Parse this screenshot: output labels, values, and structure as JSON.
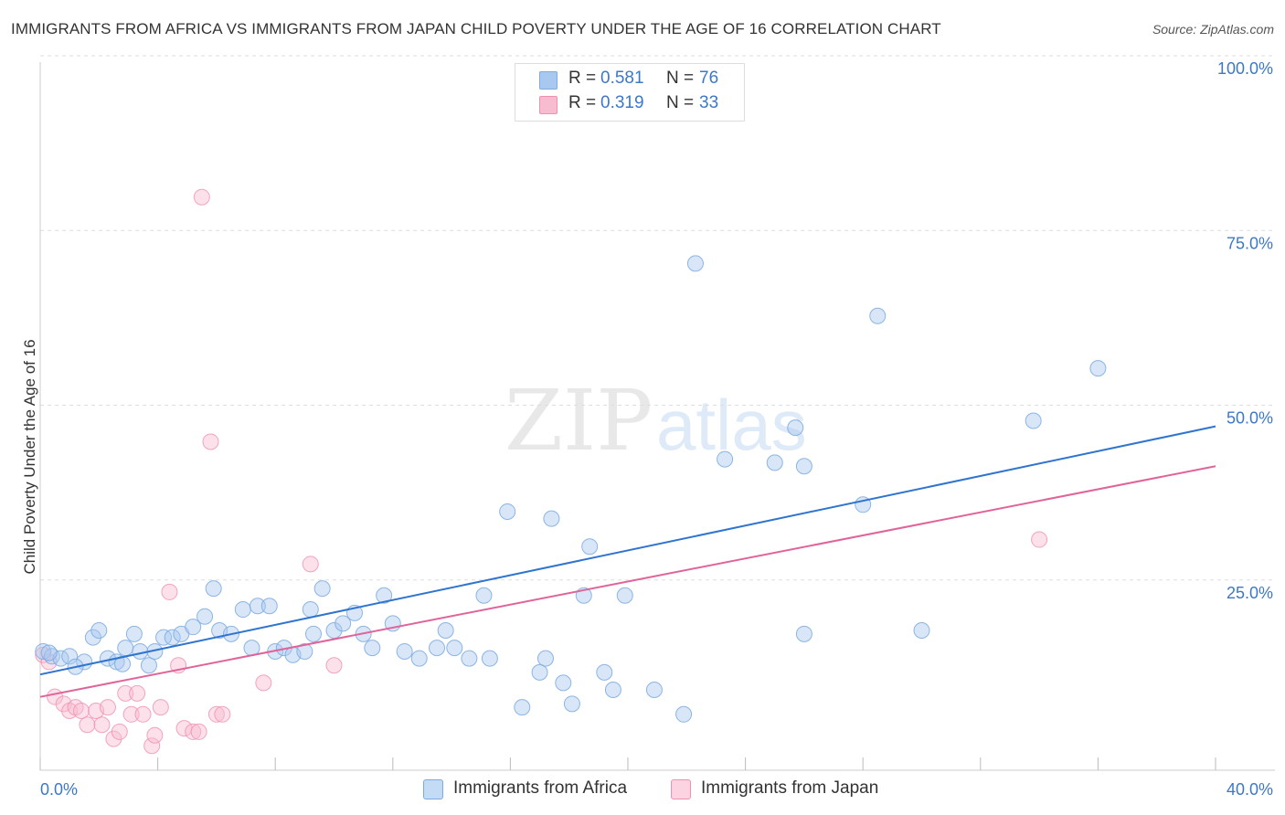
{
  "title": "IMMIGRANTS FROM AFRICA VS IMMIGRANTS FROM JAPAN CHILD POVERTY UNDER THE AGE OF 16 CORRELATION CHART",
  "source": "Source: ZipAtlas.com",
  "watermark": {
    "zip": "ZIP",
    "atlas": "atlas"
  },
  "legend_top": [
    {
      "r_label": "R =",
      "r_value": "0.581",
      "n_label": "N =",
      "n_value": "76"
    },
    {
      "r_label": "R =",
      "r_value": "0.319",
      "n_label": "N =",
      "n_value": "33"
    }
  ],
  "legend_bottom": [
    {
      "label": "Immigrants from Africa"
    },
    {
      "label": "Immigrants from Japan"
    }
  ],
  "colors": {
    "africa_fill": "#a8c8f0",
    "africa_stroke": "#7aaae0",
    "africa_line": "#2f74cf",
    "japan_fill": "#f8bcd0",
    "japan_stroke": "#f090b0",
    "japan_line": "#e0649a",
    "tick_label": "#3c78c8",
    "grid": "#dddddd"
  },
  "chart_data": {
    "type": "scatter",
    "title": "IMMIGRANTS FROM AFRICA VS IMMIGRANTS FROM JAPAN CHILD POVERTY UNDER THE AGE OF 16 CORRELATION CHART",
    "xlabel": "",
    "ylabel": "Child Poverty Under the Age of 16",
    "xlim": [
      0,
      40
    ],
    "ylim": [
      0,
      100
    ],
    "x_tick_labels": [
      {
        "value": 0,
        "label": "0.0%"
      },
      {
        "value": 40,
        "label": "40.0%"
      }
    ],
    "y_tick_labels": [
      {
        "value": 25,
        "label": "25.0%"
      },
      {
        "value": 50,
        "label": "50.0%"
      },
      {
        "value": 75,
        "label": "75.0%"
      },
      {
        "value": 100,
        "label": "100.0%"
      }
    ],
    "series": [
      {
        "name": "Immigrants from Africa",
        "r": 0.581,
        "n": 76,
        "trend": {
          "x": [
            0,
            40
          ],
          "y": [
            13.7,
            49.2
          ]
        },
        "points": [
          [
            0.1,
            17.0
          ],
          [
            0.4,
            16.3
          ],
          [
            0.7,
            16.0
          ],
          [
            1.0,
            16.3
          ],
          [
            1.5,
            15.5
          ],
          [
            1.8,
            19.0
          ],
          [
            2.0,
            20.0
          ],
          [
            2.3,
            16.0
          ],
          [
            2.6,
            15.5
          ],
          [
            2.9,
            17.5
          ],
          [
            3.2,
            19.5
          ],
          [
            3.4,
            17.0
          ],
          [
            3.7,
            15.0
          ],
          [
            3.9,
            17.0
          ],
          [
            4.2,
            19.0
          ],
          [
            4.5,
            19.0
          ],
          [
            4.8,
            19.5
          ],
          [
            5.2,
            20.5
          ],
          [
            5.6,
            22.0
          ],
          [
            5.9,
            26.0
          ],
          [
            6.1,
            20.0
          ],
          [
            6.5,
            19.5
          ],
          [
            6.9,
            23.0
          ],
          [
            7.2,
            17.5
          ],
          [
            7.4,
            23.5
          ],
          [
            7.8,
            23.5
          ],
          [
            8.0,
            17.0
          ],
          [
            8.3,
            17.5
          ],
          [
            8.6,
            16.5
          ],
          [
            9.0,
            17.0
          ],
          [
            9.2,
            23.0
          ],
          [
            9.3,
            19.5
          ],
          [
            9.6,
            26.0
          ],
          [
            10.0,
            20.0
          ],
          [
            10.3,
            21.0
          ],
          [
            10.7,
            22.5
          ],
          [
            11.0,
            19.5
          ],
          [
            11.3,
            17.5
          ],
          [
            11.7,
            25.0
          ],
          [
            12.0,
            21.0
          ],
          [
            12.4,
            17.0
          ],
          [
            12.9,
            16.0
          ],
          [
            13.5,
            17.5
          ],
          [
            13.8,
            20.0
          ],
          [
            14.1,
            17.5
          ],
          [
            14.6,
            16.0
          ],
          [
            15.1,
            25.0
          ],
          [
            15.3,
            16.0
          ],
          [
            15.9,
            37.0
          ],
          [
            16.4,
            9.0
          ],
          [
            17.0,
            14.0
          ],
          [
            17.2,
            16.0
          ],
          [
            17.4,
            36.0
          ],
          [
            17.8,
            12.5
          ],
          [
            18.1,
            9.5
          ],
          [
            18.5,
            25.0
          ],
          [
            18.7,
            32.0
          ],
          [
            19.2,
            14.0
          ],
          [
            19.5,
            11.5
          ],
          [
            19.9,
            25.0
          ],
          [
            20.9,
            11.5
          ],
          [
            21.9,
            8.0
          ],
          [
            22.3,
            72.5
          ],
          [
            23.3,
            44.5
          ],
          [
            25.0,
            44.0
          ],
          [
            25.7,
            49.0
          ],
          [
            26.0,
            43.5
          ],
          [
            26.0,
            19.5
          ],
          [
            28.0,
            38.0
          ],
          [
            28.5,
            65.0
          ],
          [
            30.0,
            20.0
          ],
          [
            33.8,
            50.0
          ],
          [
            36.0,
            57.5
          ],
          [
            0.3,
            16.8
          ],
          [
            1.2,
            14.8
          ],
          [
            2.8,
            15.2
          ]
        ]
      },
      {
        "name": "Immigrants from Japan",
        "r": 0.319,
        "n": 33,
        "trend": {
          "x": [
            0,
            40
          ],
          "y": [
            10.5,
            43.5
          ]
        },
        "points": [
          [
            0.1,
            16.5
          ],
          [
            0.5,
            10.5
          ],
          [
            0.8,
            9.5
          ],
          [
            1.0,
            8.5
          ],
          [
            1.2,
            9.0
          ],
          [
            1.4,
            8.5
          ],
          [
            1.6,
            6.5
          ],
          [
            1.9,
            8.5
          ],
          [
            2.1,
            6.5
          ],
          [
            2.3,
            9.0
          ],
          [
            2.5,
            4.5
          ],
          [
            2.7,
            5.5
          ],
          [
            2.9,
            11.0
          ],
          [
            3.1,
            8.0
          ],
          [
            3.3,
            11.0
          ],
          [
            3.5,
            8.0
          ],
          [
            3.8,
            3.5
          ],
          [
            3.9,
            5.0
          ],
          [
            4.1,
            9.0
          ],
          [
            4.4,
            25.5
          ],
          [
            4.7,
            15.0
          ],
          [
            4.9,
            6.0
          ],
          [
            5.2,
            5.5
          ],
          [
            5.4,
            5.5
          ],
          [
            5.5,
            82.0
          ],
          [
            5.8,
            47.0
          ],
          [
            6.0,
            8.0
          ],
          [
            6.2,
            8.0
          ],
          [
            7.6,
            12.5
          ],
          [
            9.2,
            29.5
          ],
          [
            10.0,
            15.0
          ],
          [
            34.0,
            33.0
          ],
          [
            0.3,
            15.5
          ]
        ]
      }
    ]
  }
}
